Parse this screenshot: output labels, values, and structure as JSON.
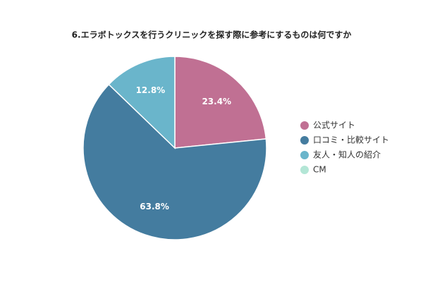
{
  "chart_data": {
    "type": "pie",
    "title": "6.エラボトックスを行うクリニックを探す際に参考にするものは何ですか",
    "categories": [
      "公式サイト",
      "口コミ・比較サイト",
      "友人・知人の紹介",
      "CM"
    ],
    "values": [
      23.4,
      63.8,
      12.8,
      0
    ],
    "value_labels": [
      "23.4%",
      "63.8%",
      "12.8%",
      null
    ],
    "colors": [
      "#c07093",
      "#447c9f",
      "#6ab5cb",
      "#b3e6d6"
    ],
    "legend": "right"
  }
}
